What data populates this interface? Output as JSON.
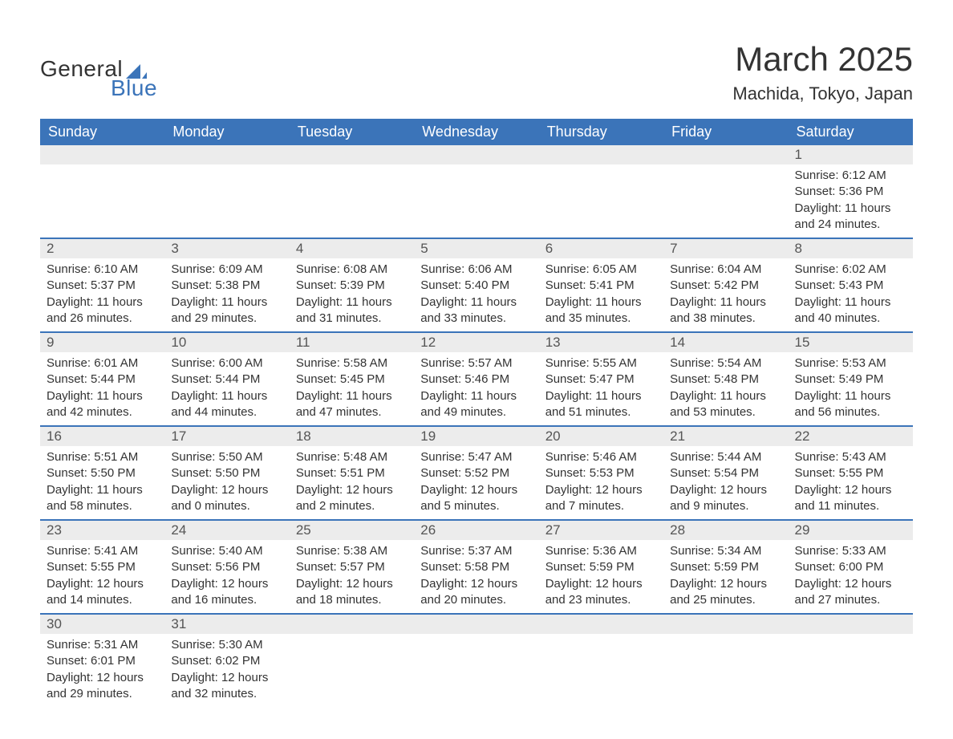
{
  "brand": {
    "word1": "General",
    "word2": "Blue",
    "word1_color": "#333333",
    "word2_color": "#3b74b9",
    "shape_fill": "#3b74b9"
  },
  "title": "March 2025",
  "location": "Machida, Tokyo, Japan",
  "colors": {
    "header_bg": "#3b74b9",
    "header_text": "#ffffff",
    "daynum_bg": "#ececec",
    "daynum_text": "#555555",
    "body_text": "#333333",
    "row_border": "#3b74b9",
    "page_bg": "#ffffff"
  },
  "typography": {
    "title_fontsize": 42,
    "location_fontsize": 22,
    "header_fontsize": 18,
    "daynum_fontsize": 17,
    "body_fontsize": 15,
    "font_family": "Arial"
  },
  "calendar": {
    "columns": [
      "Sunday",
      "Monday",
      "Tuesday",
      "Wednesday",
      "Thursday",
      "Friday",
      "Saturday"
    ],
    "weeks": [
      [
        null,
        null,
        null,
        null,
        null,
        null,
        {
          "n": "1",
          "sunrise": "Sunrise: 6:12 AM",
          "sunset": "Sunset: 5:36 PM",
          "daylight": "Daylight: 11 hours and 24 minutes."
        }
      ],
      [
        {
          "n": "2",
          "sunrise": "Sunrise: 6:10 AM",
          "sunset": "Sunset: 5:37 PM",
          "daylight": "Daylight: 11 hours and 26 minutes."
        },
        {
          "n": "3",
          "sunrise": "Sunrise: 6:09 AM",
          "sunset": "Sunset: 5:38 PM",
          "daylight": "Daylight: 11 hours and 29 minutes."
        },
        {
          "n": "4",
          "sunrise": "Sunrise: 6:08 AM",
          "sunset": "Sunset: 5:39 PM",
          "daylight": "Daylight: 11 hours and 31 minutes."
        },
        {
          "n": "5",
          "sunrise": "Sunrise: 6:06 AM",
          "sunset": "Sunset: 5:40 PM",
          "daylight": "Daylight: 11 hours and 33 minutes."
        },
        {
          "n": "6",
          "sunrise": "Sunrise: 6:05 AM",
          "sunset": "Sunset: 5:41 PM",
          "daylight": "Daylight: 11 hours and 35 minutes."
        },
        {
          "n": "7",
          "sunrise": "Sunrise: 6:04 AM",
          "sunset": "Sunset: 5:42 PM",
          "daylight": "Daylight: 11 hours and 38 minutes."
        },
        {
          "n": "8",
          "sunrise": "Sunrise: 6:02 AM",
          "sunset": "Sunset: 5:43 PM",
          "daylight": "Daylight: 11 hours and 40 minutes."
        }
      ],
      [
        {
          "n": "9",
          "sunrise": "Sunrise: 6:01 AM",
          "sunset": "Sunset: 5:44 PM",
          "daylight": "Daylight: 11 hours and 42 minutes."
        },
        {
          "n": "10",
          "sunrise": "Sunrise: 6:00 AM",
          "sunset": "Sunset: 5:44 PM",
          "daylight": "Daylight: 11 hours and 44 minutes."
        },
        {
          "n": "11",
          "sunrise": "Sunrise: 5:58 AM",
          "sunset": "Sunset: 5:45 PM",
          "daylight": "Daylight: 11 hours and 47 minutes."
        },
        {
          "n": "12",
          "sunrise": "Sunrise: 5:57 AM",
          "sunset": "Sunset: 5:46 PM",
          "daylight": "Daylight: 11 hours and 49 minutes."
        },
        {
          "n": "13",
          "sunrise": "Sunrise: 5:55 AM",
          "sunset": "Sunset: 5:47 PM",
          "daylight": "Daylight: 11 hours and 51 minutes."
        },
        {
          "n": "14",
          "sunrise": "Sunrise: 5:54 AM",
          "sunset": "Sunset: 5:48 PM",
          "daylight": "Daylight: 11 hours and 53 minutes."
        },
        {
          "n": "15",
          "sunrise": "Sunrise: 5:53 AM",
          "sunset": "Sunset: 5:49 PM",
          "daylight": "Daylight: 11 hours and 56 minutes."
        }
      ],
      [
        {
          "n": "16",
          "sunrise": "Sunrise: 5:51 AM",
          "sunset": "Sunset: 5:50 PM",
          "daylight": "Daylight: 11 hours and 58 minutes."
        },
        {
          "n": "17",
          "sunrise": "Sunrise: 5:50 AM",
          "sunset": "Sunset: 5:50 PM",
          "daylight": "Daylight: 12 hours and 0 minutes."
        },
        {
          "n": "18",
          "sunrise": "Sunrise: 5:48 AM",
          "sunset": "Sunset: 5:51 PM",
          "daylight": "Daylight: 12 hours and 2 minutes."
        },
        {
          "n": "19",
          "sunrise": "Sunrise: 5:47 AM",
          "sunset": "Sunset: 5:52 PM",
          "daylight": "Daylight: 12 hours and 5 minutes."
        },
        {
          "n": "20",
          "sunrise": "Sunrise: 5:46 AM",
          "sunset": "Sunset: 5:53 PM",
          "daylight": "Daylight: 12 hours and 7 minutes."
        },
        {
          "n": "21",
          "sunrise": "Sunrise: 5:44 AM",
          "sunset": "Sunset: 5:54 PM",
          "daylight": "Daylight: 12 hours and 9 minutes."
        },
        {
          "n": "22",
          "sunrise": "Sunrise: 5:43 AM",
          "sunset": "Sunset: 5:55 PM",
          "daylight": "Daylight: 12 hours and 11 minutes."
        }
      ],
      [
        {
          "n": "23",
          "sunrise": "Sunrise: 5:41 AM",
          "sunset": "Sunset: 5:55 PM",
          "daylight": "Daylight: 12 hours and 14 minutes."
        },
        {
          "n": "24",
          "sunrise": "Sunrise: 5:40 AM",
          "sunset": "Sunset: 5:56 PM",
          "daylight": "Daylight: 12 hours and 16 minutes."
        },
        {
          "n": "25",
          "sunrise": "Sunrise: 5:38 AM",
          "sunset": "Sunset: 5:57 PM",
          "daylight": "Daylight: 12 hours and 18 minutes."
        },
        {
          "n": "26",
          "sunrise": "Sunrise: 5:37 AM",
          "sunset": "Sunset: 5:58 PM",
          "daylight": "Daylight: 12 hours and 20 minutes."
        },
        {
          "n": "27",
          "sunrise": "Sunrise: 5:36 AM",
          "sunset": "Sunset: 5:59 PM",
          "daylight": "Daylight: 12 hours and 23 minutes."
        },
        {
          "n": "28",
          "sunrise": "Sunrise: 5:34 AM",
          "sunset": "Sunset: 5:59 PM",
          "daylight": "Daylight: 12 hours and 25 minutes."
        },
        {
          "n": "29",
          "sunrise": "Sunrise: 5:33 AM",
          "sunset": "Sunset: 6:00 PM",
          "daylight": "Daylight: 12 hours and 27 minutes."
        }
      ],
      [
        {
          "n": "30",
          "sunrise": "Sunrise: 5:31 AM",
          "sunset": "Sunset: 6:01 PM",
          "daylight": "Daylight: 12 hours and 29 minutes."
        },
        {
          "n": "31",
          "sunrise": "Sunrise: 5:30 AM",
          "sunset": "Sunset: 6:02 PM",
          "daylight": "Daylight: 12 hours and 32 minutes."
        },
        null,
        null,
        null,
        null,
        null
      ]
    ]
  }
}
